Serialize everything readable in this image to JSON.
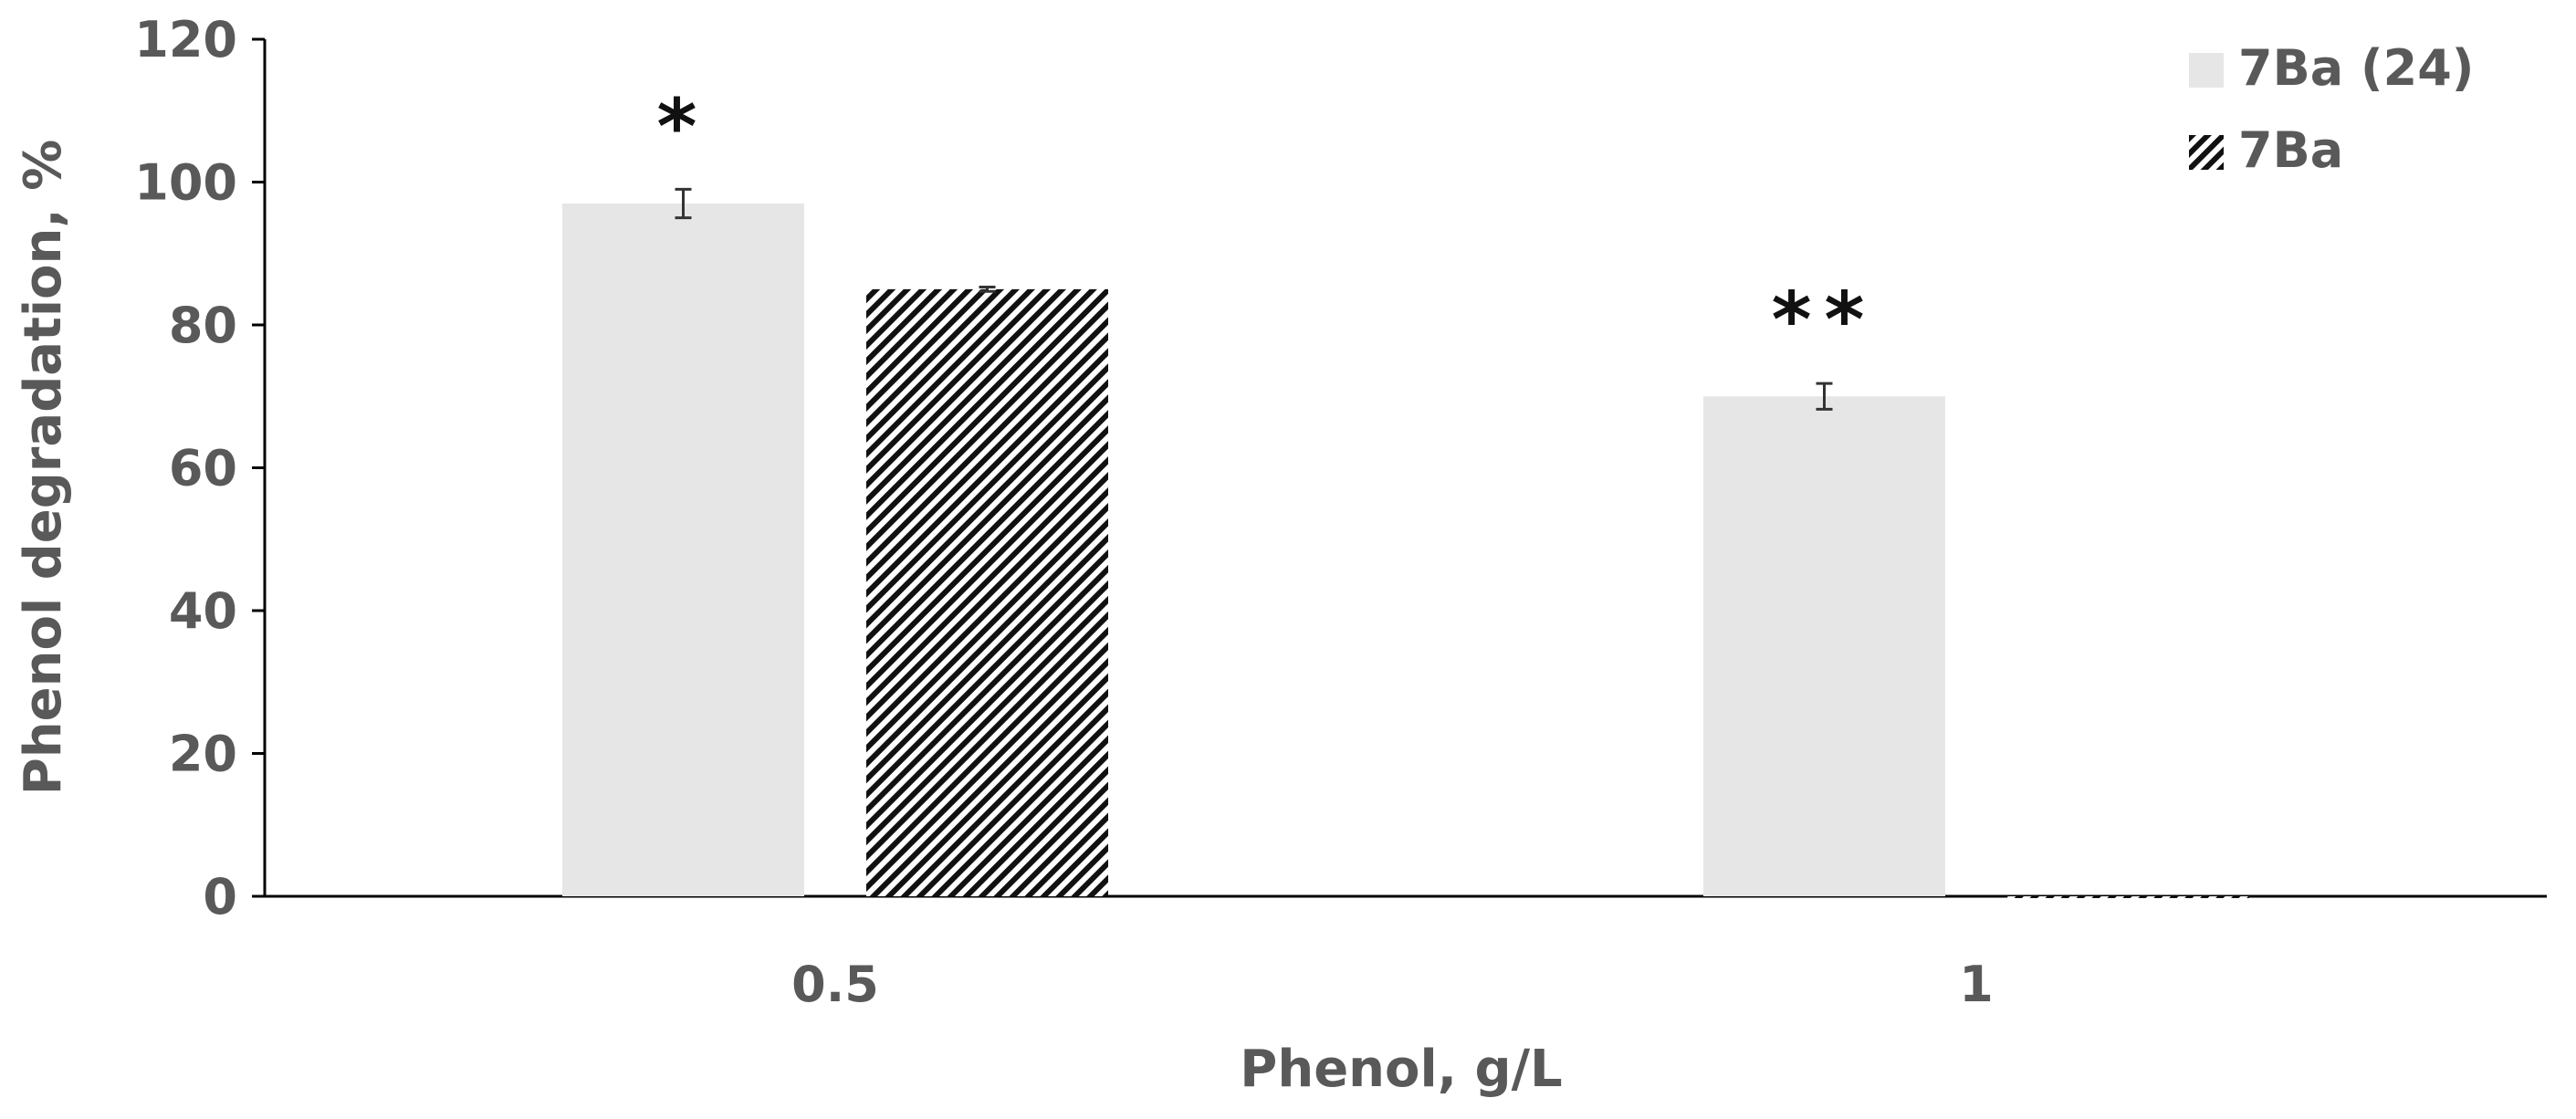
{
  "chart_data": {
    "type": "bar",
    "title": "",
    "xlabel": "Phenol, g/L",
    "ylabel": "Phenol degradation, %",
    "categories": [
      "0.5",
      "1"
    ],
    "ylim": [
      0,
      120
    ],
    "yticks": [
      0,
      20,
      40,
      60,
      80,
      100,
      120
    ],
    "grid": false,
    "legend_position": "top-right",
    "series": [
      {
        "name": "7Ba (24)",
        "values": [
          97,
          70
        ],
        "errors": [
          2,
          1.8
        ],
        "fill": "solid",
        "color": "#e6e6e6"
      },
      {
        "name": "7Ba",
        "values": [
          85,
          0
        ],
        "errors": [
          0.3,
          0
        ],
        "fill": "diagonal-hatch",
        "color": "#111111"
      }
    ],
    "annotations": [
      {
        "text": "*",
        "category": "0.5",
        "series": "7Ba (24)"
      },
      {
        "text": "**",
        "category": "1",
        "series": "7Ba (24)"
      }
    ]
  }
}
